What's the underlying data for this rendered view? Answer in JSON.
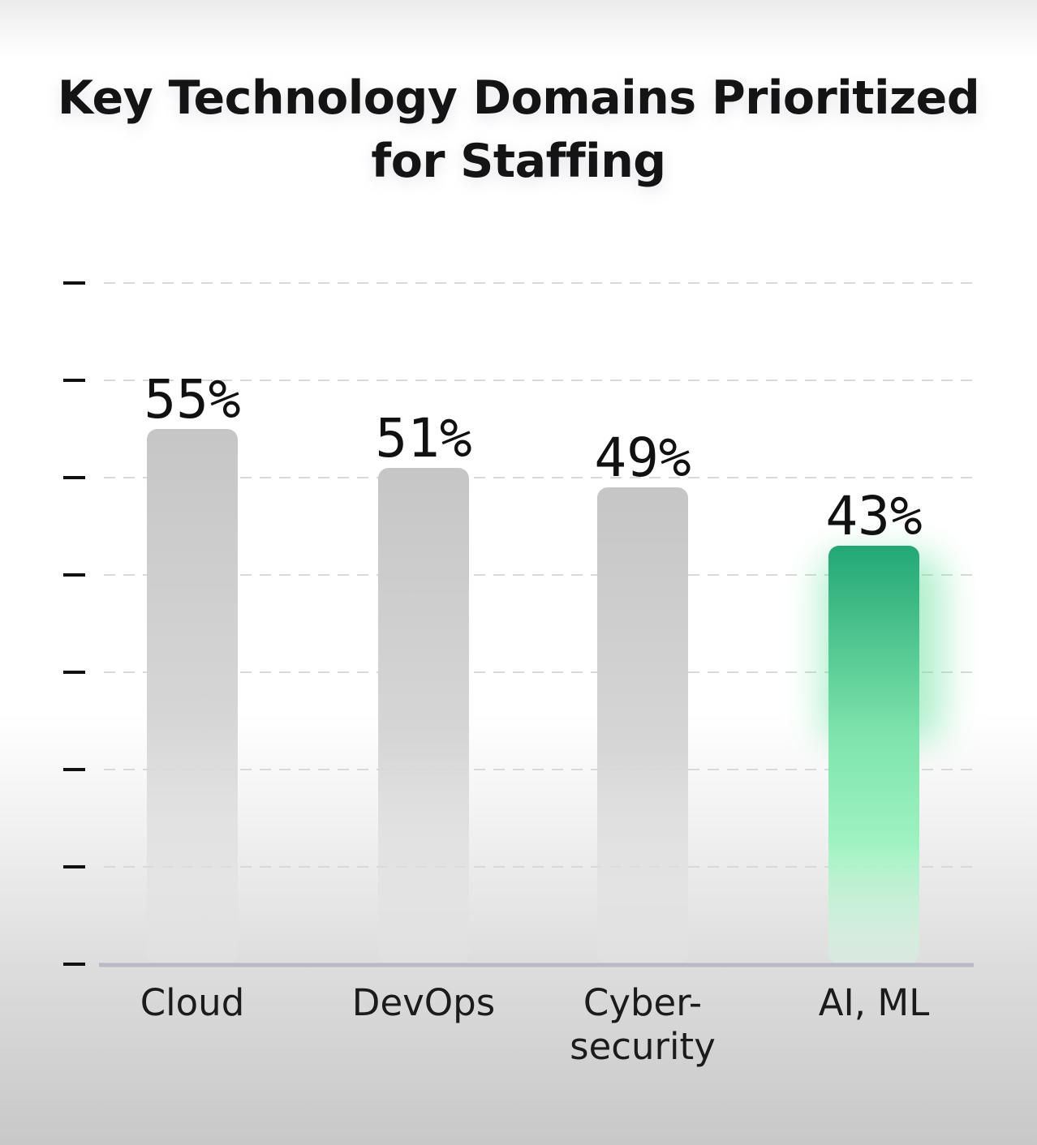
{
  "chart_data": {
    "type": "bar",
    "title_lines": [
      "Key Technology Domains Prioritized",
      "for Staffing"
    ],
    "categories": [
      [
        "Cloud"
      ],
      [
        "DevOps"
      ],
      [
        "Cyber-",
        "security"
      ],
      [
        "AI, ML"
      ]
    ],
    "values": [
      55,
      51,
      49,
      43
    ],
    "value_labels": [
      "55%",
      "51%",
      "49%",
      "43%"
    ],
    "highlight_index": 3,
    "ylim": [
      0,
      70
    ],
    "y_tick_step": 10,
    "grid": true,
    "colors": {
      "bar": "#c8c8c8",
      "bar_highlight_top": "#22a774",
      "bar_highlight_bottom": "#9cf2c0",
      "axis": "#b9b9c4",
      "grid": "#d9d9d9",
      "tick": "#111111"
    }
  }
}
